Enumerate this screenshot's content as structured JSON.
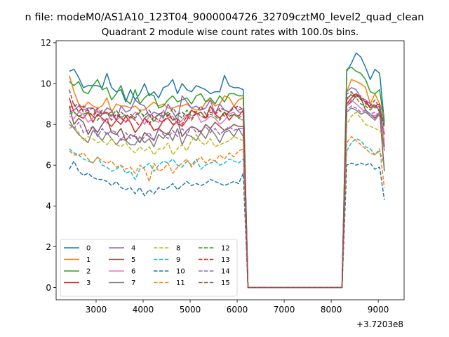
{
  "chart_data": {
    "type": "line",
    "suptitle": "n file: modeM0/AS1A10_123T04_9000004726_32709cztM0_level2_quad_clean",
    "title": "Quadrant 2 module wise count rates with 100.0s bins.",
    "xlabel": "",
    "ylabel": "",
    "x_offset_text": "+3.7203e8",
    "xlim": [
      2150,
      9550
    ],
    "ylim": [
      -0.6,
      12.1
    ],
    "x_ticks": [
      3000,
      4000,
      5000,
      6000,
      7000,
      8000,
      9000
    ],
    "x_tick_labels": [
      "3000",
      "4000",
      "5000",
      "6000",
      "7000",
      "8000",
      "9000"
    ],
    "y_ticks": [
      0,
      2,
      4,
      6,
      8,
      10,
      12
    ],
    "y_tick_labels": [
      "0",
      "2",
      "4",
      "6",
      "8",
      "10",
      "12"
    ],
    "grid": false,
    "legend": {
      "placement": "lower-left",
      "columns": 4
    },
    "x_start": 2430,
    "x_step": 100,
    "gap_from": 6230,
    "gap_to": 8230,
    "series": [
      {
        "name": "0",
        "color": "#1f77b4",
        "dash": "solid",
        "pre": [
          10.6,
          10.7,
          10.3,
          9.8,
          9.9,
          9.9,
          9.9,
          9.8,
          10.5,
          9.8,
          9.6,
          9.7,
          9.1,
          9.7,
          9.2,
          9.5,
          10.0,
          9.4,
          9.6,
          9.3,
          9.8,
          9.9,
          10.2,
          9.5,
          10.0,
          9.7,
          9.6,
          9.9,
          9.8,
          9.7,
          9.5,
          9.6,
          9.6,
          10.4,
          9.9,
          9.8,
          9.8,
          9.7
        ],
        "post": [
          10.6,
          11.0,
          11.5,
          11.3,
          10.8,
          10.2,
          10.7,
          10.5,
          8.1
        ]
      },
      {
        "name": "1",
        "color": "#ff7f0e",
        "dash": "solid",
        "pre": [
          10.4,
          9.6,
          9.0,
          8.8,
          9.1,
          8.9,
          8.8,
          8.9,
          9.3,
          8.6,
          9.0,
          8.9,
          8.9,
          8.8,
          8.9,
          8.7,
          8.7,
          8.9,
          9.1,
          8.9,
          9.0,
          8.8,
          8.8,
          8.9,
          8.9,
          9.0,
          8.8,
          8.7,
          8.7,
          9.1,
          9.2,
          8.9,
          9.0,
          9.4,
          9.3,
          8.9,
          9.2,
          9.3
        ],
        "post": [
          9.6,
          10.2,
          10.1,
          10.0,
          9.8,
          9.0,
          9.5,
          9.0,
          8.4
        ]
      },
      {
        "name": "2",
        "color": "#2ca02c",
        "dash": "solid",
        "pre": [
          10.1,
          9.9,
          10.1,
          9.6,
          9.5,
          9.9,
          10.2,
          9.7,
          9.8,
          9.2,
          9.5,
          9.9,
          9.2,
          9.0,
          9.7,
          9.0,
          9.3,
          9.5,
          9.4,
          8.8,
          8.9,
          9.2,
          9.4,
          9.1,
          9.2,
          9.3,
          9.0,
          9.4,
          9.5,
          9.1,
          9.3,
          9.0,
          9.4,
          9.1,
          9.5,
          9.5,
          9.4,
          9.4
        ],
        "post": [
          10.7,
          10.8,
          10.6,
          10.5,
          10.2,
          9.6,
          9.5,
          9.7,
          8.0
        ]
      },
      {
        "name": "3",
        "color": "#d62728",
        "dash": "solid",
        "pre": [
          9.3,
          8.6,
          8.4,
          8.3,
          8.6,
          8.1,
          8.5,
          8.3,
          8.1,
          7.9,
          8.2,
          8.0,
          8.4,
          8.1,
          7.6,
          7.9,
          8.3,
          8.1,
          7.7,
          7.8,
          8.2,
          8.3,
          8.0,
          8.1,
          7.9,
          8.2,
          8.7,
          8.5,
          8.6,
          8.3,
          8.9,
          8.5,
          8.3,
          8.6,
          8.2,
          8.5,
          8.4,
          8.7
        ],
        "post": [
          9.0,
          9.3,
          9.5,
          9.3,
          9.2,
          8.8,
          8.9,
          9.0,
          6.9
        ]
      },
      {
        "name": "4",
        "color": "#9467bd",
        "dash": "solid",
        "pre": [
          8.6,
          8.7,
          8.9,
          8.7,
          8.8,
          8.8,
          8.6,
          8.5,
          8.8,
          8.7,
          8.2,
          8.9,
          8.6,
          8.7,
          9.2,
          9.0,
          8.9,
          8.4,
          8.6,
          8.5,
          8.3,
          9.0,
          8.6,
          8.2,
          9.4,
          9.1,
          8.8,
          8.9,
          8.7,
          8.8,
          9.2,
          8.5,
          9.0,
          8.7,
          8.6,
          8.9,
          8.6,
          8.6
        ],
        "post": [
          9.6,
          9.8,
          9.7,
          9.3,
          9.2,
          9.0,
          8.8,
          8.9,
          7.9
        ]
      },
      {
        "name": "5",
        "color": "#8c564b",
        "dash": "solid",
        "pre": [
          8.9,
          8.0,
          8.3,
          8.1,
          7.5,
          7.9,
          7.6,
          8.0,
          8.3,
          7.6,
          7.5,
          7.8,
          7.2,
          7.5,
          7.4,
          7.1,
          7.6,
          7.4,
          7.2,
          7.8,
          7.6,
          7.5,
          7.9,
          8.2,
          7.4,
          7.7,
          7.9,
          7.8,
          7.6,
          8.0,
          7.8,
          8.1,
          7.9,
          7.7,
          7.8,
          8.0,
          7.9,
          7.9
        ],
        "post": [
          8.9,
          9.1,
          9.4,
          9.3,
          8.7,
          8.5,
          8.3,
          8.6,
          5.7
        ]
      },
      {
        "name": "6",
        "color": "#e377c2",
        "dash": "solid",
        "pre": [
          8.4,
          8.3,
          8.6,
          8.5,
          8.1,
          8.3,
          8.7,
          8.2,
          8.1,
          8.5,
          8.2,
          8.4,
          8.1,
          8.3,
          8.6,
          8.4,
          8.0,
          8.4,
          8.2,
          8.1,
          8.7,
          8.3,
          8.4,
          8.0,
          8.2,
          8.5,
          8.3,
          8.6,
          8.1,
          8.2,
          8.4,
          8.3,
          8.0,
          8.2,
          8.5,
          8.6,
          8.3,
          8.2
        ],
        "post": [
          8.9,
          9.2,
          9.0,
          8.8,
          8.6,
          8.5,
          8.4,
          8.6,
          7.2
        ]
      },
      {
        "name": "7",
        "color": "#7f7f7f",
        "dash": "solid",
        "pre": [
          8.2,
          7.8,
          7.5,
          7.3,
          7.1,
          7.7,
          7.5,
          7.2,
          7.6,
          7.3,
          7.0,
          7.3,
          7.2,
          7.0,
          7.0,
          7.4,
          7.1,
          7.3,
          6.9,
          7.5,
          7.3,
          7.6,
          7.2,
          7.8,
          7.0,
          7.5,
          7.4,
          7.2,
          7.6,
          7.3,
          7.8,
          7.5,
          7.1,
          7.6,
          7.7,
          7.4,
          7.8,
          7.4
        ],
        "post": [
          8.6,
          8.8,
          8.7,
          8.5,
          8.6,
          8.4,
          8.2,
          8.5,
          6.7
        ]
      },
      {
        "name": "8",
        "color": "#bcbd22",
        "dash": "dashed",
        "pre": [
          7.8,
          7.9,
          7.6,
          7.2,
          7.4,
          7.3,
          7.1,
          7.2,
          7.0,
          7.3,
          7.0,
          6.9,
          7.1,
          6.8,
          6.6,
          6.9,
          6.7,
          6.9,
          6.5,
          6.8,
          6.8,
          7.1,
          6.5,
          6.8,
          7.0,
          6.7,
          7.2,
          7.5,
          7.1,
          7.0,
          7.3,
          6.9,
          7.0,
          7.1,
          7.2,
          7.4,
          7.3,
          7.2
        ],
        "post": [
          8.0,
          8.4,
          8.6,
          8.3,
          8.0,
          7.9,
          7.8,
          7.7,
          7.3
        ]
      },
      {
        "name": "9",
        "color": "#17becf",
        "dash": "dashed",
        "pre": [
          6.8,
          6.6,
          6.5,
          6.3,
          6.2,
          6.1,
          6.4,
          6.0,
          5.9,
          5.7,
          5.8,
          6.0,
          5.6,
          5.7,
          5.3,
          5.8,
          5.9,
          6.1,
          5.7,
          6.0,
          6.2,
          6.1,
          6.3,
          6.0,
          5.9,
          6.2,
          6.0,
          6.3,
          5.8,
          6.0,
          6.1,
          6.2,
          6.0,
          6.1,
          6.3,
          6.2,
          6.1,
          6.3
        ],
        "post": [
          6.7,
          7.1,
          7.3,
          7.2,
          6.9,
          6.8,
          6.5,
          6.7,
          6.0
        ]
      },
      {
        "name": "10",
        "color": "#1f77b4",
        "dash": "dashed",
        "pre": [
          5.8,
          6.2,
          5.7,
          5.5,
          5.6,
          5.4,
          5.3,
          5.3,
          5.2,
          5.0,
          5.2,
          4.9,
          4.8,
          4.9,
          4.6,
          4.9,
          4.5,
          4.8,
          4.6,
          4.9,
          4.8,
          4.9,
          5.1,
          4.8,
          5.0,
          5.2,
          5.0,
          5.1,
          5.0,
          5.1,
          5.3,
          5.2,
          5.1,
          5.0,
          5.1,
          5.2,
          5.1,
          5.6
        ],
        "post": [
          6.0,
          6.1,
          6.0,
          6.1,
          6.0,
          6.1,
          5.8,
          5.9,
          4.3
        ]
      },
      {
        "name": "11",
        "color": "#ff7f0e",
        "dash": "dashed",
        "pre": [
          6.7,
          6.5,
          6.5,
          6.6,
          6.3,
          6.1,
          6.4,
          6.2,
          6.1,
          6.2,
          5.9,
          6.0,
          5.8,
          5.9,
          5.6,
          6.0,
          5.8,
          5.2,
          6.1,
          5.7,
          5.8,
          6.1,
          5.6,
          5.9,
          6.1,
          6.3,
          5.9,
          6.2,
          6.4,
          6.1,
          6.3,
          6.2,
          6.5,
          6.3,
          6.6,
          6.4,
          6.7,
          6.8
        ],
        "post": [
          7.1,
          7.4,
          7.2,
          7.0,
          6.8,
          6.6,
          6.5,
          6.8,
          4.9
        ]
      },
      {
        "name": "12",
        "color": "#2ca02c",
        "dash": "dashed",
        "pre": [
          8.5,
          8.6,
          8.4,
          8.5,
          8.6,
          8.4,
          8.2,
          8.5,
          8.6,
          8.4,
          8.7,
          8.3,
          8.5,
          8.3,
          8.4,
          8.7,
          8.3,
          8.5,
          8.1,
          8.5,
          8.4,
          8.6,
          8.2,
          8.5,
          8.3,
          8.7,
          8.4,
          8.5,
          8.6,
          8.3,
          8.5,
          8.4,
          8.2,
          8.6,
          8.4,
          8.5,
          8.3,
          8.5
        ],
        "post": [
          9.2,
          9.5,
          9.3,
          9.0,
          8.9,
          8.7,
          8.9,
          8.7,
          8.0
        ]
      },
      {
        "name": "13",
        "color": "#d62728",
        "dash": "dashed",
        "pre": [
          8.8,
          9.0,
          8.6,
          8.9,
          8.7,
          8.4,
          8.8,
          8.5,
          8.6,
          8.2,
          8.5,
          8.3,
          8.1,
          8.4,
          8.2,
          7.9,
          8.3,
          8.0,
          8.4,
          8.2,
          8.1,
          8.5,
          8.2,
          8.3,
          8.0,
          8.4,
          8.2,
          8.6,
          8.4,
          8.3,
          8.6,
          8.5,
          8.7,
          8.4,
          8.6,
          8.8,
          8.9,
          8.7
        ],
        "post": [
          9.3,
          9.4,
          9.5,
          9.2,
          9.1,
          8.8,
          9.0,
          8.6,
          7.5
        ]
      },
      {
        "name": "14",
        "color": "#9467bd",
        "dash": "dashed",
        "pre": [
          8.0,
          7.8,
          8.1,
          7.6,
          7.7,
          7.9,
          7.4,
          7.8,
          7.5,
          7.7,
          7.6,
          7.2,
          7.6,
          7.3,
          7.5,
          7.1,
          7.4,
          7.6,
          7.2,
          7.8,
          7.5,
          7.3,
          7.7,
          7.4,
          7.8,
          7.5,
          7.9,
          7.6,
          7.7,
          7.9,
          7.6,
          7.8,
          7.5,
          7.7,
          7.9,
          7.7,
          7.8,
          7.8
        ],
        "post": [
          8.7,
          8.9,
          8.8,
          8.6,
          8.7,
          8.5,
          8.6,
          8.4,
          7.6
        ]
      },
      {
        "name": "15",
        "color": "#8c564b",
        "dash": "dashed",
        "pre": [
          9.7,
          8.9,
          9.0,
          8.6,
          8.7,
          8.8,
          8.4,
          8.7,
          8.5,
          8.6,
          8.2,
          8.6,
          8.4,
          8.5,
          8.3,
          8.6,
          8.4,
          8.7,
          8.3,
          8.5,
          8.6,
          8.4,
          8.8,
          8.5,
          8.6,
          8.4,
          8.7,
          8.6,
          8.9,
          8.5,
          8.7,
          8.6,
          8.8,
          8.7,
          8.6,
          8.9,
          8.7,
          8.8
        ],
        "post": [
          9.5,
          9.6,
          9.3,
          9.4,
          9.0,
          8.9,
          9.2,
          8.8,
          7.8
        ]
      }
    ]
  }
}
